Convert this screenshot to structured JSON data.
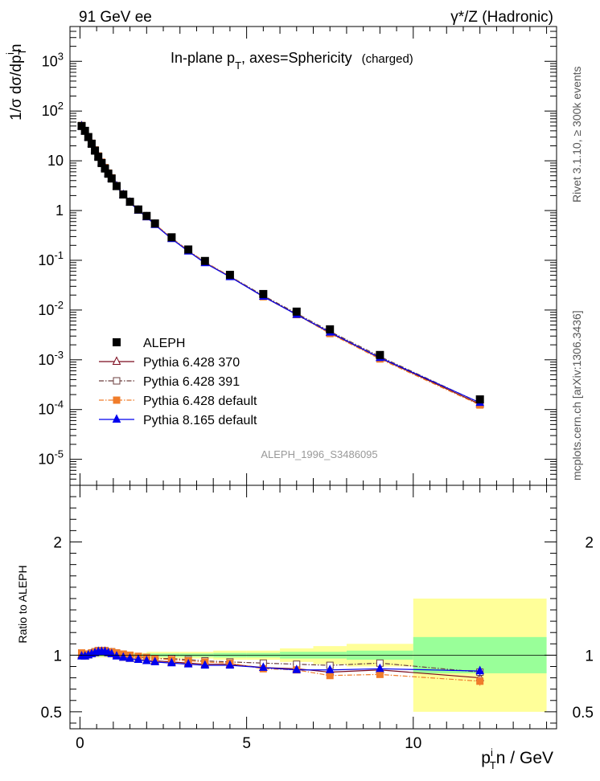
{
  "header": {
    "left": "91 GeV ee",
    "right": "γ*/Z (Hadronic)"
  },
  "side_labels": {
    "version": "Rivet 3.1.10, ≥ 300k events",
    "source": "mcplots.cern.ch [arXiv:1306.3436]"
  },
  "chart_data": {
    "type": "line",
    "title_main": "In-plane p",
    "title_sub": "T",
    "title_rest": ", axes=Sphericity",
    "title_tag": "(charged)",
    "analysis_id": "ALEPH_1996_S3486095",
    "x_label_base": "p",
    "x_label_sub": "T",
    "x_label_sup": "i",
    "x_label_rest": "n / GeV",
    "y_label": "1/σ dσ/dp",
    "y_label_sub": "T",
    "y_label_sup": "i",
    "y_label_end": "n",
    "ratio_ylabel": "Ratio to ALEPH",
    "xlim": [
      -0.3,
      14.3
    ],
    "ylim_log": [
      3e-06,
      5000
    ],
    "ratio_ylim": [
      0.35,
      2.5
    ],
    "x_ticks": [
      0,
      5,
      10
    ],
    "x_tick_labels": [
      "0",
      "5",
      "10"
    ],
    "y_ticks": [
      1e-05,
      0.0001,
      0.001,
      0.01,
      0.1,
      1,
      10,
      100,
      1000
    ],
    "y_tick_labels": [
      {
        "base": "10",
        "exp": "-5"
      },
      {
        "base": "10",
        "exp": "-4"
      },
      {
        "base": "10",
        "exp": "-3"
      },
      {
        "base": "10",
        "exp": "-2"
      },
      {
        "base": "10",
        "exp": "-1"
      },
      {
        "base": "1",
        "exp": ""
      },
      {
        "base": "10",
        "exp": ""
      },
      {
        "base": "10",
        "exp": "2"
      },
      {
        "base": "10",
        "exp": "3"
      }
    ],
    "ratio_ticks": [
      0.5,
      1,
      2
    ],
    "ratio_tick_labels": [
      "0.5",
      "1",
      "2"
    ],
    "x": [
      0.05,
      0.15,
      0.25,
      0.35,
      0.45,
      0.55,
      0.65,
      0.75,
      0.85,
      0.95,
      1.1,
      1.3,
      1.5,
      1.75,
      2.0,
      2.25,
      2.75,
      3.25,
      3.75,
      4.5,
      5.5,
      6.5,
      7.5,
      9.0,
      12.0
    ],
    "data": {
      "name": "ALEPH",
      "color": "#000000",
      "values": [
        50,
        40,
        30,
        22,
        16,
        12,
        9,
        7,
        5.5,
        4.4,
        3.1,
        2.1,
        1.5,
        1.05,
        0.78,
        0.55,
        0.29,
        0.165,
        0.097,
        0.051,
        0.021,
        0.0093,
        0.0041,
        0.00125,
        0.00016
      ]
    },
    "series": [
      {
        "name": "Pythia 6.428 370",
        "color": "#7b0a1d",
        "dash": "",
        "marker": "triangle-open",
        "ratio": [
          1.0,
          0.99,
          1.0,
          1.01,
          1.02,
          1.03,
          1.03,
          1.03,
          1.02,
          1.02,
          1.0,
          0.98,
          0.97,
          0.96,
          0.95,
          0.95,
          0.94,
          0.93,
          0.92,
          0.92,
          0.89,
          0.88,
          0.85,
          0.87,
          0.8
        ]
      },
      {
        "name": "Pythia 6.428 391",
        "color": "#6b3f3f",
        "dash": "6,2,1.5,2",
        "marker": "square-open",
        "ratio": [
          1.01,
          1.01,
          1.01,
          1.02,
          1.03,
          1.04,
          1.04,
          1.04,
          1.03,
          1.03,
          1.02,
          1.0,
          0.99,
          0.98,
          0.98,
          0.97,
          0.97,
          0.96,
          0.95,
          0.94,
          0.93,
          0.92,
          0.91,
          0.93,
          0.85
        ]
      },
      {
        "name": "Pythia 6.428 default",
        "color": "#f07c2a",
        "dash": "6,2,1.5,2",
        "marker": "square-filled",
        "ratio": [
          1.02,
          1.01,
          1.01,
          1.02,
          1.03,
          1.04,
          1.04,
          1.04,
          1.03,
          1.03,
          1.02,
          1.01,
          1.0,
          0.99,
          0.98,
          0.97,
          0.96,
          0.95,
          0.94,
          0.93,
          0.88,
          0.87,
          0.82,
          0.83,
          0.77
        ]
      },
      {
        "name": "Pythia 8.165 default",
        "color": "#0000ee",
        "dash": "",
        "marker": "triangle-filled",
        "ratio": [
          0.99,
          0.99,
          1.0,
          1.01,
          1.02,
          1.03,
          1.03,
          1.03,
          1.02,
          1.01,
          0.99,
          0.98,
          0.97,
          0.96,
          0.95,
          0.94,
          0.93,
          0.92,
          0.91,
          0.91,
          0.89,
          0.87,
          0.87,
          0.88,
          0.86
        ]
      }
    ],
    "ratio_error_last": 0.04,
    "uncertainty_bands": {
      "x_edges": [
        0,
        0.5,
        1,
        1.5,
        2,
        3,
        4,
        5,
        6,
        7,
        8,
        10,
        14
      ],
      "green": [
        0.01,
        0.01,
        0.01,
        0.01,
        0.015,
        0.015,
        0.02,
        0.02,
        0.03,
        0.03,
        0.04,
        0.16
      ],
      "yellow": [
        0.02,
        0.02,
        0.02,
        0.02,
        0.03,
        0.03,
        0.04,
        0.04,
        0.06,
        0.08,
        0.1,
        0.5
      ],
      "green_color": "#99ff99",
      "yellow_color": "#ffff99"
    }
  }
}
